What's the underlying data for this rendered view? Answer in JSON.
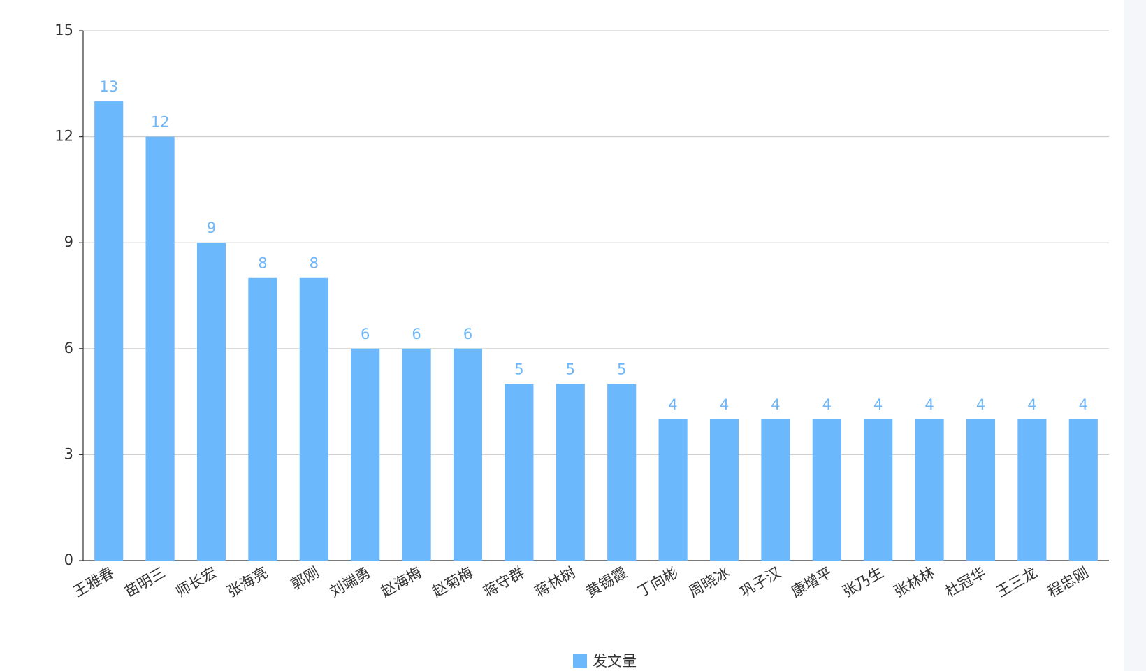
{
  "chart_data": {
    "type": "bar",
    "categories": [
      "王雅春",
      "苗明三",
      "师长宏",
      "张海亮",
      "郭刚",
      "刘端勇",
      "赵海梅",
      "赵菊梅",
      "蒋守群",
      "蒋林树",
      "黄锡霞",
      "丁向彬",
      "周晓冰",
      "巩子汉",
      "康增平",
      "张乃生",
      "张林林",
      "杜冠华",
      "王三龙",
      "程忠刚"
    ],
    "series": [
      {
        "name": "发文量",
        "color": "#6cb8fc",
        "values": [
          13,
          12,
          9,
          8,
          8,
          6,
          6,
          6,
          5,
          5,
          5,
          4,
          4,
          4,
          4,
          4,
          4,
          4,
          4,
          4
        ]
      }
    ],
    "ylim": [
      0,
      15
    ],
    "yticks": [
      0,
      3,
      6,
      9,
      12,
      15
    ],
    "grid": true,
    "legend": "bottom"
  }
}
